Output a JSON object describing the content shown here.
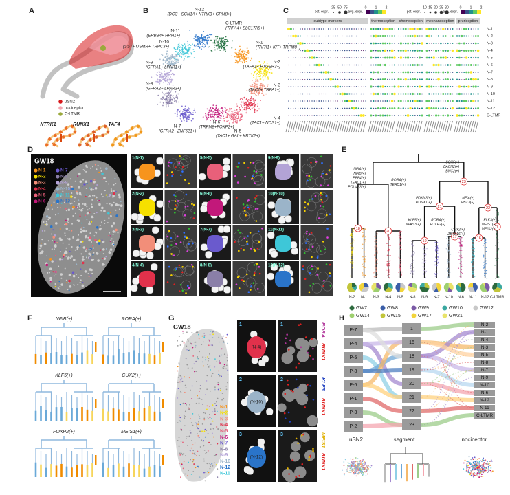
{
  "panel_a": {
    "letter": "A",
    "legend": [
      "uSN2",
      "nociceptor",
      "C-LTMR"
    ],
    "legend_colors": [
      "#d7191c",
      "#f4a6b0",
      "#9aa93c"
    ],
    "genes": [
      "NTRK1",
      "RUNX1",
      "TAF4"
    ]
  },
  "panel_b": {
    "letter": "B",
    "clusters": [
      {
        "name": "N-12",
        "markers": "(DCC+ SCN1A+ NTRK3+ GRM8+)"
      },
      {
        "name": "C-LTMR",
        "markers": "(TAFA4+ SLC17A8+)"
      },
      {
        "name": "N-11",
        "markers": "(ERBB4+ HRH1+)"
      },
      {
        "name": "N-10",
        "markers": "(SST+ OSMR+ TRPC3+)"
      },
      {
        "name": "N-1",
        "markers": "(TAFA1+ KIT+ TRPM8+)"
      },
      {
        "name": "N-9",
        "markers": "(GFRA1+ LPAR1+)"
      },
      {
        "name": "N-2",
        "markers": "(TAFA1+ PTGER3+)"
      },
      {
        "name": "N-8",
        "markers": "(GFRA2+ LPAR3+)"
      },
      {
        "name": "N-3",
        "markers": "(TAC1+ TRPA1+)"
      },
      {
        "name": "N-4",
        "markers": "(TAC1+ NOS1+)"
      },
      {
        "name": "N-7",
        "markers": "(GFRA2+ ZNF521+)"
      },
      {
        "name": "N-6",
        "markers": "(TRPM8+FOXP2+)"
      },
      {
        "name": "N-5",
        "markers": "(TAC1+ GAL+ KRTK2+)"
      }
    ]
  },
  "panel_c": {
    "letter": "C",
    "legend_pct": "pct. expr.",
    "pct_sizes": [
      "25",
      "50",
      "75"
    ],
    "pct_sizes_2": [
      "10",
      "15",
      "20",
      "25",
      "30"
    ],
    "legend_avg": "avg. expr.",
    "avg_scale": [
      "0",
      "1",
      "2"
    ],
    "groups": [
      "subtype markers",
      "thermoception",
      "chemoception",
      "mechanoception",
      "pruriception"
    ],
    "rows": [
      "N-1",
      "N-2",
      "N-3",
      "N-4",
      "N-5",
      "N-6",
      "N-7",
      "N-8",
      "N-9",
      "N-10",
      "N-11",
      "N-12",
      "C-LTMR"
    ]
  },
  "panel_d": {
    "letter": "D",
    "stage": "GW18",
    "clusters": [
      "N-1",
      "N-2",
      "N-3",
      "N-4",
      "N-5",
      "N-6",
      "N-7",
      "N-8",
      "N-9",
      "N-10",
      "N-11",
      "N-12"
    ],
    "colors": [
      "#f7941d",
      "#f6e000",
      "#f28e79",
      "#e0314b",
      "#e8607a",
      "#c2187a",
      "#6a5acd",
      "#8a7fa8",
      "#b3a3d6",
      "#9bb4c9",
      "#3ec7d8",
      "#2a74c9"
    ],
    "tiles": [
      "1(N-1)",
      "2(N-2)",
      "3(N-3)",
      "4(N-4)",
      "5(N-5)",
      "6(N-6)",
      "7(N-7)",
      "8(N-8)",
      "9(N-9)",
      "10(N-10)",
      "11(N-11)",
      "12(N-12)"
    ]
  },
  "panel_e": {
    "letter": "E",
    "annotations": [
      [
        "SOX5(+)",
        "BACH2(+)",
        "BNC2(+)"
      ],
      [
        "NFIA(+)",
        "NFIB(+)",
        "EBF4(+)",
        "TEAD1(+)",
        "POU4F3(+)"
      ],
      [
        "RORA(+)",
        "TEAD1(+)"
      ],
      [
        "FOXN3(+)",
        "RUNX1(+)"
      ],
      [
        "NFIA(+)",
        "PBX3(+)"
      ],
      [
        "KLF5(+)",
        "NPAS3(+)"
      ],
      [
        "RORA(+)",
        "FOXP2(+)"
      ],
      [
        "CUX2(+)",
        "ZBTB16(+)"
      ],
      [
        "ELK3(+)",
        "MEIS1(+)",
        "MEIS2(+)"
      ]
    ],
    "nodes": [
      "18",
      "20",
      "23",
      "21",
      "22",
      "19",
      "17",
      "16",
      "1"
    ],
    "leaves": [
      "N-2",
      "N-1",
      "N-3",
      "N-4",
      "N-5",
      "N-8",
      "N-9",
      "N-7",
      "N-10",
      "N-6",
      "N-11",
      "N-12",
      "C-LTMR"
    ],
    "stages": [
      "GW7",
      "GW8",
      "GW9",
      "GW10",
      "GW12",
      "GW14",
      "GW15",
      "GW17",
      "GW21"
    ],
    "stage_colors": [
      "#2d6a3e",
      "#3b5ea8",
      "#7b5aa6",
      "#3aa8a0",
      "#c8c8c8",
      "#9ecf6f",
      "#c2c53a",
      "#f2d43a",
      "#e8e36a"
    ]
  },
  "panel_f": {
    "letter": "F",
    "genes": [
      "NFIB(+)",
      "RORA(+)",
      "KLF5(+)",
      "CUX2(+)",
      "FOXP2(+)",
      "MEIS1(+)"
    ]
  },
  "panel_g": {
    "letter": "G",
    "stage": "GW18",
    "clusters": [
      "N-1",
      "N-2",
      "N-3",
      "N-4",
      "N-5",
      "N-6",
      "N-7",
      "N-8",
      "N-9",
      "N-10",
      "N-12",
      "N-11"
    ],
    "tiles": [
      {
        "index": "1",
        "cluster": "(N-4)"
      },
      {
        "index": "2",
        "cluster": "(N-10)"
      },
      {
        "index": "3",
        "cluster": "(N-12)"
      }
    ],
    "stains": [
      [
        {
          "gene": "RORA",
          "color": "#b0359a"
        },
        {
          "gene": "RUNX1",
          "color": "#e02020"
        }
      ],
      [
        {
          "gene": "KLF5",
          "color": "#2040c0"
        },
        {
          "gene": "RUNX1",
          "color": "#e02020"
        }
      ],
      [
        {
          "gene": "MEIS1",
          "color": "#e0b000"
        },
        {
          "gene": "RUNX1",
          "color": "#e02020"
        }
      ]
    ]
  },
  "panel_h": {
    "letter": "H",
    "left": [
      "P-7",
      "P-4",
      "P-5",
      "P-8",
      "P-6",
      "P-1",
      "P-3",
      "P-2"
    ],
    "middle": [
      "1",
      "16",
      "18",
      "19",
      "20",
      "21",
      "22",
      "23"
    ],
    "right": [
      "N-2",
      "N-1",
      "N-4",
      "N-3",
      "N-5",
      "N-8",
      "N-7",
      "N-9",
      "N-10",
      "N-6",
      "N-12",
      "N-11",
      "C-LTMR"
    ],
    "umaps": [
      "uSN2",
      "segment",
      "nociceptor"
    ]
  }
}
